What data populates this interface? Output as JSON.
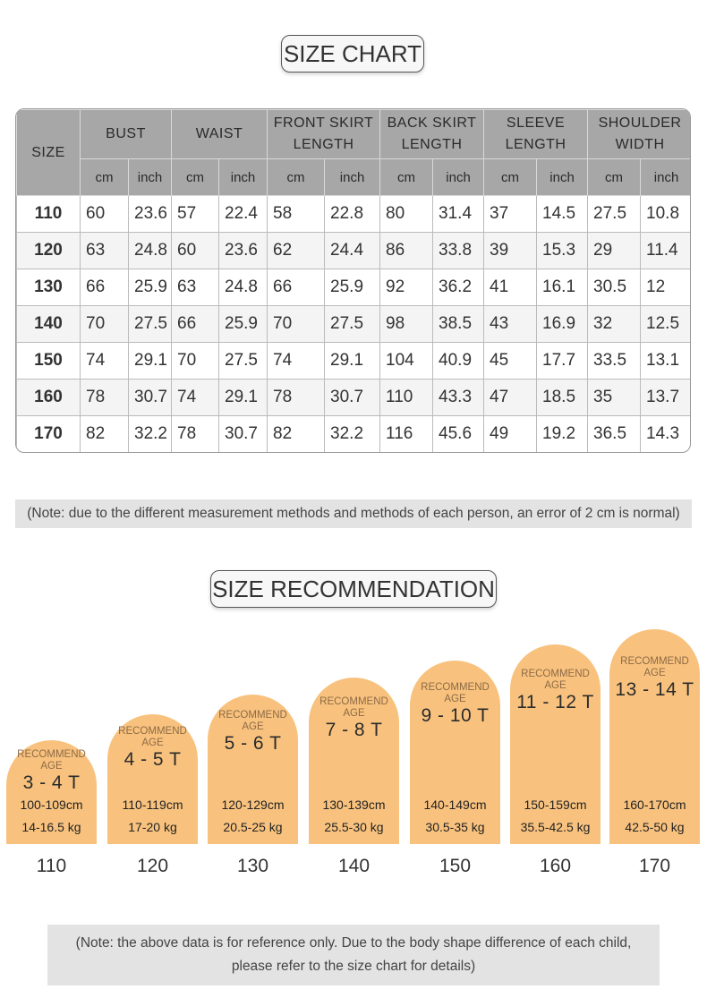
{
  "size_chart": {
    "title": "SIZE CHART",
    "size_header": "SIZE",
    "groups": [
      "BUST",
      "WAIST",
      "FRONT SKIRT LENGTH",
      "BACK SKIRT LENGTH",
      "SLEEVE LENGTH",
      "SHOULDER WIDTH"
    ],
    "group_lines": [
      [
        "BUST"
      ],
      [
        "WAIST"
      ],
      [
        "FRONT SKIRT",
        "LENGTH"
      ],
      [
        "BACK SKIRT",
        "LENGTH"
      ],
      [
        "SLEEVE",
        "LENGTH"
      ],
      [
        "SHOULDER",
        "WIDTH"
      ]
    ],
    "units": [
      "cm",
      "inch"
    ],
    "rows": [
      {
        "size": "110",
        "values": [
          "60",
          "23.6",
          "57",
          "22.4",
          "58",
          "22.8",
          "80",
          "31.4",
          "37",
          "14.5",
          "27.5",
          "10.8"
        ]
      },
      {
        "size": "120",
        "values": [
          "63",
          "24.8",
          "60",
          "23.6",
          "62",
          "24.4",
          "86",
          "33.8",
          "39",
          "15.3",
          "29",
          "11.4"
        ]
      },
      {
        "size": "130",
        "values": [
          "66",
          "25.9",
          "63",
          "24.8",
          "66",
          "25.9",
          "92",
          "36.2",
          "41",
          "16.1",
          "30.5",
          "12"
        ]
      },
      {
        "size": "140",
        "values": [
          "70",
          "27.5",
          "66",
          "25.9",
          "70",
          "27.5",
          "98",
          "38.5",
          "43",
          "16.9",
          "32",
          "12.5"
        ]
      },
      {
        "size": "150",
        "values": [
          "74",
          "29.1",
          "70",
          "27.5",
          "74",
          "29.1",
          "104",
          "40.9",
          "45",
          "17.7",
          "33.5",
          "13.1"
        ]
      },
      {
        "size": "160",
        "values": [
          "78",
          "30.7",
          "74",
          "29.1",
          "78",
          "30.7",
          "110",
          "43.3",
          "47",
          "18.5",
          "35",
          "13.7"
        ]
      },
      {
        "size": "170",
        "values": [
          "82",
          "32.2",
          "78",
          "30.7",
          "82",
          "32.2",
          "116",
          "45.6",
          "49",
          "19.2",
          "36.5",
          "14.3"
        ]
      }
    ]
  },
  "note_measurement": "(Note: due to the different measurement methods and methods of each person, an error of 2 cm is normal)",
  "recommendation": {
    "title": "SIZE RECOMMENDATION",
    "rec_line1": "RECOMMEND",
    "rec_line2": "AGE",
    "items": [
      {
        "size": "110",
        "age": "3 - 4 T",
        "height": "100-109cm",
        "weight": "14-16.5 kg"
      },
      {
        "size": "120",
        "age": "4 - 5 T",
        "height": "110-119cm",
        "weight": "17-20 kg"
      },
      {
        "size": "130",
        "age": "5 - 6 T",
        "height": "120-129cm",
        "weight": "20.5-25 kg"
      },
      {
        "size": "140",
        "age": "7 - 8 T",
        "height": "130-139cm",
        "weight": "25.5-30 kg"
      },
      {
        "size": "150",
        "age": "9 - 10 T",
        "height": "140-149cm",
        "weight": "30.5-35 kg"
      },
      {
        "size": "160",
        "age": "11 - 12 T",
        "height": "150-159cm",
        "weight": "35.5-42.5 kg"
      },
      {
        "size": "170",
        "age": "13 - 14 T",
        "height": "160-170cm",
        "weight": "42.5-50 kg"
      }
    ]
  },
  "note_reference_line1": "(Note: the above data is for reference only. Due to the body shape difference of each child,",
  "note_reference_line2": "please refer to the size chart for details)",
  "colors": {
    "header_bg": "#a7a7a7",
    "arch_fill": "#f8c27e",
    "note_bg": "#e3e3e3"
  }
}
